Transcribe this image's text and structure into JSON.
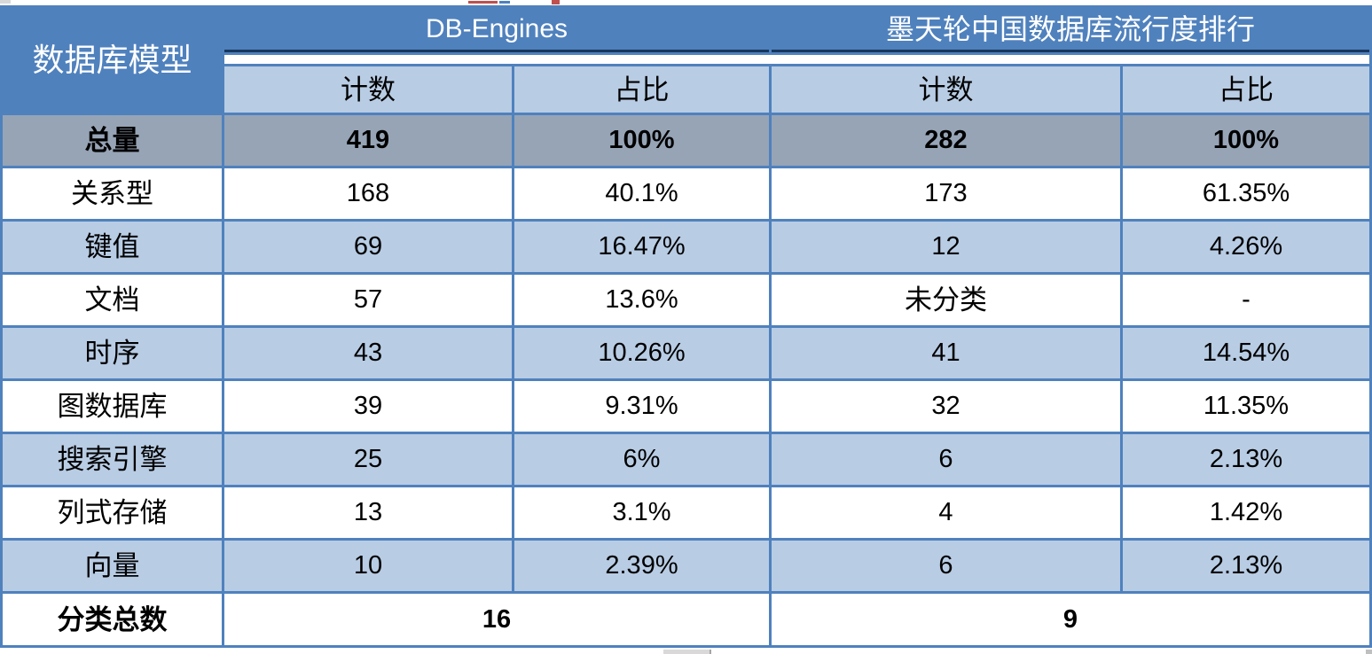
{
  "chart_data": {
    "type": "table",
    "corner_header": "数据库模型",
    "groups": [
      {
        "label": "DB-Engines",
        "subcolumns": [
          "计数",
          "占比"
        ]
      },
      {
        "label": "墨天轮中国数据库流行度排行",
        "subcolumns": [
          "计数",
          "占比"
        ]
      }
    ],
    "sub_headers": [
      "计数",
      "占比",
      "计数",
      "占比"
    ],
    "rows": [
      {
        "label": "总量",
        "values": [
          "419",
          "100%",
          "282",
          "100%"
        ],
        "emphasis": "total"
      },
      {
        "label": "关系型",
        "values": [
          "168",
          "40.1%",
          "173",
          "61.35%"
        ],
        "emphasis": "none"
      },
      {
        "label": "键值",
        "values": [
          "69",
          "16.47%",
          "12",
          "4.26%"
        ],
        "emphasis": "none"
      },
      {
        "label": "文档",
        "values": [
          "57",
          "13.6%",
          "未分类",
          "-"
        ],
        "emphasis": "none"
      },
      {
        "label": "时序",
        "values": [
          "43",
          "10.26%",
          "41",
          "14.54%"
        ],
        "emphasis": "none"
      },
      {
        "label": "图数据库",
        "values": [
          "39",
          "9.31%",
          "32",
          "11.35%"
        ],
        "emphasis": "none"
      },
      {
        "label": "搜索引擎",
        "values": [
          "25",
          "6%",
          "6",
          "2.13%"
        ],
        "emphasis": "none"
      },
      {
        "label": "列式存储",
        "values": [
          "13",
          "3.1%",
          "4",
          "1.42%"
        ],
        "emphasis": "none"
      },
      {
        "label": "向量",
        "values": [
          "10",
          "2.39%",
          "6",
          "2.13%"
        ],
        "emphasis": "none"
      }
    ],
    "footer": {
      "label": "分类总数",
      "values": [
        "16",
        "9"
      ]
    }
  },
  "colors": {
    "header_blue": "#4F81BD",
    "header_underline_navy": "#17375E",
    "light_blue": "#B8CCE4",
    "total_row_gray": "#96A4B6",
    "grid_border": "#4F81BD",
    "text": "#000000",
    "header_text": "#FFFFFF",
    "artifact_red": "#C0504D"
  }
}
